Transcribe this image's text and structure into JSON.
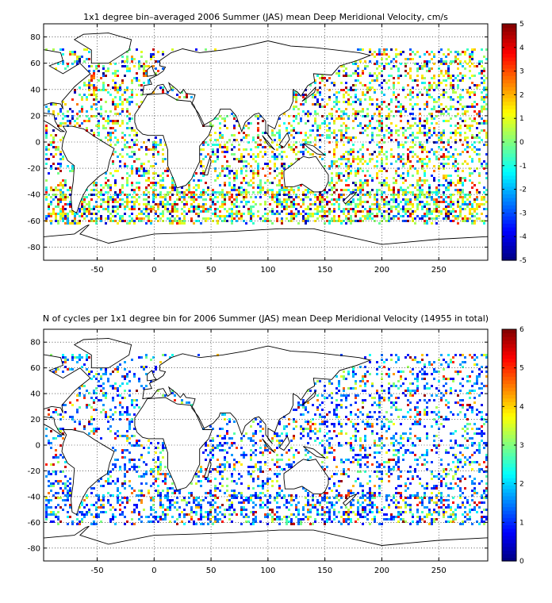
{
  "chart_data": [
    {
      "type": "heatmap",
      "title": "1x1 degree bin–averaged 2006 Summer (JAS) mean Deep Meridional Velocity, cm/s",
      "xlabel": "",
      "ylabel": "",
      "xlim": [
        -97,
        293
      ],
      "ylim": [
        -90,
        90
      ],
      "x_ticks": [
        -50,
        0,
        50,
        100,
        150,
        200,
        250
      ],
      "y_ticks": [
        -80,
        -60,
        -40,
        -20,
        0,
        20,
        40,
        60,
        80
      ],
      "grid": true,
      "colorbar": {
        "min": -5,
        "max": 5,
        "ticks": [
          -5,
          -4,
          -3,
          -2,
          -1,
          0,
          1,
          2,
          3,
          4,
          5
        ],
        "colormap": "jet"
      }
    },
    {
      "type": "heatmap",
      "title": "N of cycles per 1x1 degree bin for 2006 Summer (JAS) mean Deep Meridional Velocity (14955 in total)",
      "xlabel": "",
      "ylabel": "",
      "xlim": [
        -97,
        293
      ],
      "ylim": [
        -90,
        90
      ],
      "x_ticks": [
        -50,
        0,
        50,
        100,
        150,
        200,
        250
      ],
      "y_ticks": [
        -80,
        -60,
        -40,
        -20,
        0,
        20,
        40,
        60,
        80
      ],
      "grid": true,
      "colorbar": {
        "min": 0,
        "max": 6,
        "ticks": [
          0,
          1,
          2,
          3,
          4,
          5,
          6
        ],
        "colormap": "jet"
      }
    }
  ]
}
